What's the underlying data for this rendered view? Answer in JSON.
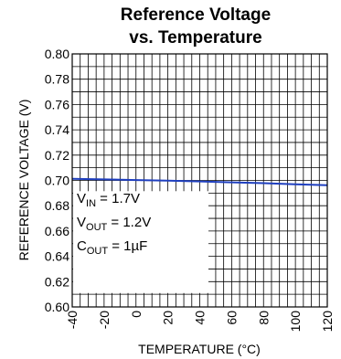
{
  "chart_data": {
    "type": "line",
    "title_line1": "Reference Voltage",
    "title_line2": "vs. Temperature",
    "xlabel": "TEMPERATURE (°C)",
    "ylabel": "REFERENCE VOLTAGE (V)",
    "xlim": [
      -40,
      120
    ],
    "ylim": [
      0.6,
      0.8
    ],
    "x_ticks": [
      "-40",
      "-20",
      "0",
      "20",
      "40",
      "60",
      "80",
      "100",
      "120"
    ],
    "y_ticks": [
      "0.60",
      "0.62",
      "0.64",
      "0.66",
      "0.68",
      "0.70",
      "0.72",
      "0.74",
      "0.76",
      "0.78",
      "0.80"
    ],
    "grid": true,
    "line_color": "#1f3fbf",
    "series": [
      {
        "x": [
          -40,
          -20,
          0,
          20,
          40,
          60,
          80,
          100,
          120
        ],
        "y": [
          0.7012,
          0.7008,
          0.7003,
          0.6998,
          0.6992,
          0.6985,
          0.6978,
          0.697,
          0.6962
        ]
      }
    ],
    "annotations": [
      {
        "main": "V",
        "sub": "IN",
        "rest": " = 1.7V"
      },
      {
        "main": "V",
        "sub": "OUT",
        "rest": " = 1.2V"
      },
      {
        "main": "C",
        "sub": "OUT",
        "rest": " = 1µF"
      }
    ]
  }
}
